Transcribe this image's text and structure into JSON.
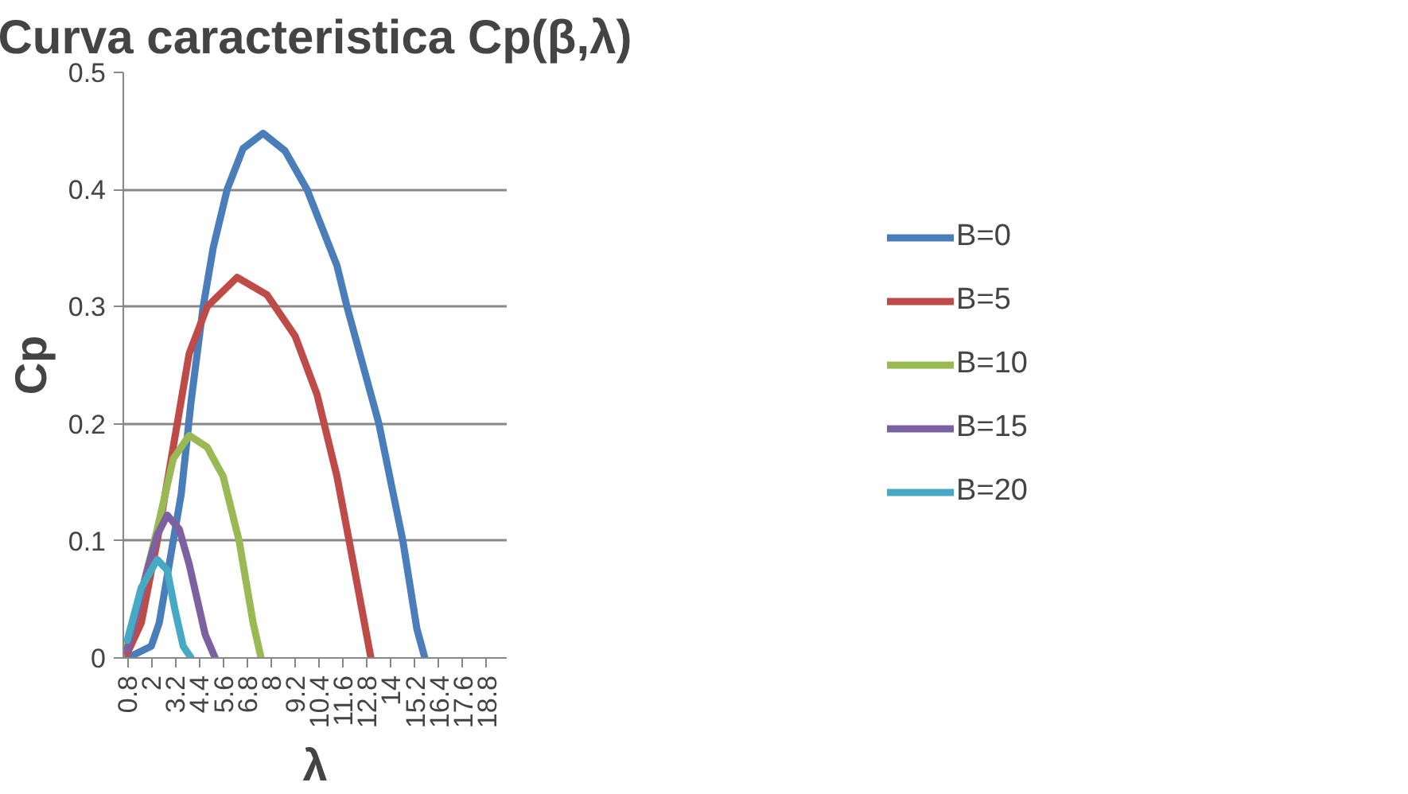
{
  "chart_data": {
    "type": "line",
    "title": "Curva caracteristica Cp(β,λ)",
    "xlabel": "λ",
    "ylabel": "Cp",
    "xlim": [
      0.6,
      19.8
    ],
    "ylim": [
      0,
      0.5
    ],
    "xticks": [
      0.8,
      2,
      3.2,
      4.4,
      5.6,
      6.8,
      8,
      9.2,
      10.4,
      11.6,
      12.8,
      14,
      15.2,
      16.4,
      17.6,
      18.8
    ],
    "yticks": [
      0,
      0.1,
      0.2,
      0.3,
      0.4,
      0.5
    ],
    "grid": "y",
    "legend": "right",
    "marker": "none",
    "line_style": "solid",
    "series": [
      {
        "name": "B=0",
        "color": "#4a7ebb",
        "x": [
          0.8,
          2.0,
          2.4,
          2.8,
          3.5,
          4.0,
          4.6,
          5.1,
          5.8,
          6.6,
          7.6,
          8.7,
          9.8,
          11.3,
          11.8,
          13.4,
          14.6,
          15.3,
          15.7
        ],
        "values": [
          0,
          0.01,
          0.03,
          0.07,
          0.14,
          0.22,
          0.3,
          0.35,
          0.4,
          0.435,
          0.448,
          0.433,
          0.4,
          0.335,
          0.3,
          0.2,
          0.1,
          0.025,
          0
        ]
      },
      {
        "name": "B=5",
        "color": "#be4b48",
        "x": [
          0.8,
          1.5,
          2.3,
          3.0,
          3.9,
          4.8,
          6.3,
          7.8,
          9.2,
          10.3,
          11.3,
          11.8,
          13.0
        ],
        "values": [
          0.004,
          0.03,
          0.1,
          0.17,
          0.26,
          0.3,
          0.325,
          0.31,
          0.275,
          0.225,
          0.155,
          0.11,
          0
        ]
      },
      {
        "name": "B=10",
        "color": "#98b954",
        "x": [
          0.8,
          1.5,
          2.3,
          3.1,
          3.9,
          4.8,
          5.6,
          6.4,
          7.1,
          7.5
        ],
        "values": [
          0.01,
          0.055,
          0.11,
          0.17,
          0.19,
          0.18,
          0.155,
          0.1,
          0.03,
          0
        ]
      },
      {
        "name": "B=15",
        "color": "#7d60a0",
        "x": [
          0.8,
          1.8,
          2.3,
          2.8,
          3.4,
          3.9,
          4.7,
          5.2
        ],
        "values": [
          0.007,
          0.075,
          0.105,
          0.122,
          0.11,
          0.08,
          0.02,
          0
        ]
      },
      {
        "name": "B=20",
        "color": "#46aac5",
        "x": [
          0.8,
          1.5,
          2.3,
          2.8,
          3.2,
          3.6,
          4.0
        ],
        "values": [
          0.015,
          0.06,
          0.084,
          0.075,
          0.04,
          0.01,
          0
        ]
      }
    ]
  }
}
